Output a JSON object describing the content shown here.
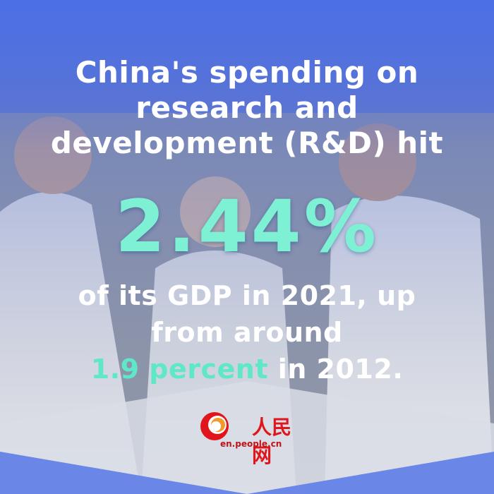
{
  "headline": {
    "line1": "China's spending on",
    "line2": "research and",
    "line3": "development (R&D) hit",
    "figure": "2.44%",
    "line4": "of its GDP in 2021, up",
    "line5": "from around",
    "highlight": "1.9 percent",
    "line6_rest": " in 2012."
  },
  "logo": {
    "name": "人民网",
    "url": "en.people.cn"
  },
  "colors": {
    "background_blue": "#4c6fe6",
    "highlight": "#5ee8c8",
    "logo_red": "#e0161c"
  }
}
